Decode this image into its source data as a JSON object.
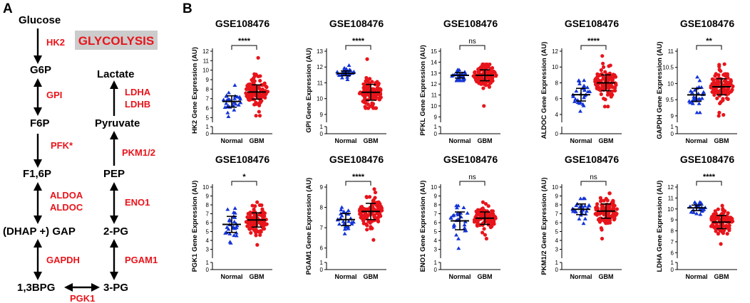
{
  "panel_a": {
    "label": "A",
    "banner": "GLYCOLYSIS",
    "colors": {
      "enzyme": "#e8141b",
      "banner_bg": "#cccccc"
    },
    "left_metabolites": [
      "Glucose",
      "G6P",
      "F6P",
      "F1,6P",
      "(DHAP +) GAP",
      "1,3BPG"
    ],
    "right_metabolites": [
      "Lactate",
      "Pyruvate",
      "PEP",
      "2-PG",
      "3-PG"
    ],
    "enzymes": {
      "hk2": "HK2",
      "gpi": "GPI",
      "pfk": "PFK*",
      "aldoa": "ALDOA",
      "aldoc": "ALDOC",
      "gapdh": "GAPDH",
      "pgk1": "PGK1",
      "pgam1": "PGAM1",
      "eno1": "ENO1",
      "pkm": "PKM1/2",
      "ldha": "LDHA",
      "ldhb": "LDHB"
    }
  },
  "panel_b_label": "B",
  "chart_data": [
    {
      "type": "scatter",
      "title": "GSE108476",
      "ylabel": "HK2 Gene Expression  (AU)",
      "categories": [
        "Normal",
        "GBM"
      ],
      "ylim": [
        0,
        12
      ],
      "yticks": [
        0,
        1,
        2,
        3,
        4,
        5,
        6,
        7,
        8,
        9,
        10,
        11,
        12
      ],
      "break": 4.5,
      "series": [
        {
          "name": "Normal",
          "color": "#1433d6",
          "marker": "triangle",
          "n": 28,
          "mean": 6.7,
          "sd": 0.6,
          "min": 5.1,
          "max": 8.4
        },
        {
          "name": "GBM",
          "color": "#e8141b",
          "marker": "circle",
          "n": 110,
          "mean": 7.7,
          "sd": 0.75,
          "min": 5.2,
          "max": 11.3
        }
      ],
      "significance": "****"
    },
    {
      "type": "scatter",
      "title": "GSE108476",
      "ylabel": "GPI Gene Expression  (AU)",
      "categories": [
        "Normal",
        "GBM"
      ],
      "ylim": [
        0,
        13
      ],
      "yticks": [
        0,
        1,
        9,
        10,
        11,
        12,
        13
      ],
      "break": 8.5,
      "ymin_upper": 8.5,
      "series": [
        {
          "name": "Normal",
          "color": "#1433d6",
          "marker": "triangle",
          "n": 28,
          "mean": 11.6,
          "sd": 0.15,
          "min": 11.2,
          "max": 12.1
        },
        {
          "name": "GBM",
          "color": "#e8141b",
          "marker": "circle",
          "n": 110,
          "mean": 10.4,
          "sd": 0.5,
          "min": 9.4,
          "max": 12.5
        }
      ],
      "significance": "****"
    },
    {
      "type": "scatter",
      "title": "GSE108476",
      "ylabel": "PFKL Gene Expression  (AU)",
      "categories": [
        "Normal",
        "GBM"
      ],
      "ylim": [
        0,
        15
      ],
      "yticks": [
        0,
        1,
        9,
        10,
        11,
        12,
        13,
        14,
        15
      ],
      "break": 8.5,
      "series": [
        {
          "name": "Normal",
          "color": "#1433d6",
          "marker": "triangle",
          "n": 28,
          "mean": 12.8,
          "sd": 0.25,
          "min": 12.3,
          "max": 13.3
        },
        {
          "name": "GBM",
          "color": "#e8141b",
          "marker": "circle",
          "n": 110,
          "mean": 12.8,
          "sd": 0.5,
          "min": 10.0,
          "max": 13.8
        }
      ],
      "significance": "ns"
    },
    {
      "type": "scatter",
      "title": "GSE108476",
      "ylabel": "ALDOC Gene Expression  (AU)",
      "categories": [
        "Normal",
        "GBM"
      ],
      "ylim": [
        0,
        12
      ],
      "yticks": [
        0,
        2,
        4,
        6,
        8,
        10,
        12
      ],
      "break": 3,
      "series": [
        {
          "name": "Normal",
          "color": "#1433d6",
          "marker": "triangle",
          "n": 28,
          "mean": 6.5,
          "sd": 0.8,
          "min": 4.4,
          "max": 8.3
        },
        {
          "name": "GBM",
          "color": "#e8141b",
          "marker": "circle",
          "n": 110,
          "mean": 8.0,
          "sd": 1.0,
          "min": 5.0,
          "max": 11.4
        }
      ],
      "significance": "****"
    },
    {
      "type": "scatter",
      "title": "GSE108476",
      "ylabel": "GAPDH Gene Expression  (AU)",
      "categories": [
        "Normal",
        "GBM"
      ],
      "ylim": [
        0,
        11
      ],
      "yticks": [
        0,
        1,
        9.0,
        9.5,
        10.0,
        10.5,
        11.0
      ],
      "break": 8.8,
      "series": [
        {
          "name": "Normal",
          "color": "#1433d6",
          "marker": "triangle",
          "n": 28,
          "mean": 9.65,
          "sd": 0.2,
          "min": 9.1,
          "max": 10.2
        },
        {
          "name": "GBM",
          "color": "#e8141b",
          "marker": "circle",
          "n": 110,
          "mean": 9.9,
          "sd": 0.25,
          "min": 9.0,
          "max": 10.6
        }
      ],
      "significance": "**"
    },
    {
      "type": "scatter",
      "title": "GSE108476",
      "ylabel": "PGK1 Gene Expression  (AU)",
      "categories": [
        "Normal",
        "GBM"
      ],
      "ylim": [
        0,
        10
      ],
      "yticks": [
        0,
        1,
        3,
        4,
        5,
        6,
        7,
        8,
        9,
        10
      ],
      "break": 2,
      "series": [
        {
          "name": "Normal",
          "color": "#1433d6",
          "marker": "triangle",
          "n": 28,
          "mean": 5.8,
          "sd": 0.9,
          "min": 3.7,
          "max": 7.6
        },
        {
          "name": "GBM",
          "color": "#e8141b",
          "marker": "circle",
          "n": 110,
          "mean": 6.3,
          "sd": 0.8,
          "min": 3.5,
          "max": 8.3
        }
      ],
      "significance": "*"
    },
    {
      "type": "scatter",
      "title": "GSE108476",
      "ylabel": "PGAM1 Gene Expression  (AU)",
      "categories": [
        "Normal",
        "GBM"
      ],
      "ylim": [
        0,
        9
      ],
      "yticks": [
        0,
        1,
        6,
        7,
        8,
        9
      ],
      "break": 5.5,
      "series": [
        {
          "name": "Normal",
          "color": "#1433d6",
          "marker": "triangle",
          "n": 28,
          "mean": 7.4,
          "sd": 0.3,
          "min": 6.7,
          "max": 8.0
        },
        {
          "name": "GBM",
          "color": "#e8141b",
          "marker": "circle",
          "n": 110,
          "mean": 7.8,
          "sd": 0.4,
          "min": 6.4,
          "max": 8.9
        }
      ],
      "significance": "****"
    },
    {
      "type": "scatter",
      "title": "GSE108476",
      "ylabel": "ENO1 Gene Expression  (AU)",
      "categories": [
        "Normal",
        "GBM"
      ],
      "ylim": [
        0,
        10
      ],
      "yticks": [
        0,
        1,
        3,
        4,
        5,
        6,
        7,
        8,
        9,
        10
      ],
      "break": 2,
      "series": [
        {
          "name": "Normal",
          "color": "#1433d6",
          "marker": "triangle",
          "n": 28,
          "mean": 6.2,
          "sd": 1.0,
          "min": 3.1,
          "max": 7.9
        },
        {
          "name": "GBM",
          "color": "#e8141b",
          "marker": "circle",
          "n": 110,
          "mean": 6.5,
          "sd": 0.7,
          "min": 4.2,
          "max": 8.3
        }
      ],
      "significance": "ns"
    },
    {
      "type": "scatter",
      "title": "GSE108476",
      "ylabel": "PKM1/2 Gene Expression  (AU)",
      "categories": [
        "Normal",
        "GBM"
      ],
      "ylim": [
        0,
        10
      ],
      "yticks": [
        0,
        1,
        3,
        4,
        5,
        6,
        7,
        8,
        9,
        10
      ],
      "break": 2,
      "series": [
        {
          "name": "Normal",
          "color": "#1433d6",
          "marker": "triangle",
          "n": 28,
          "mean": 7.5,
          "sd": 0.6,
          "min": 5.9,
          "max": 8.7
        },
        {
          "name": "GBM",
          "color": "#e8141b",
          "marker": "circle",
          "n": 110,
          "mean": 7.3,
          "sd": 0.8,
          "min": 4.2,
          "max": 9.3
        }
      ],
      "significance": "ns"
    },
    {
      "type": "scatter",
      "title": "GSE108476",
      "ylabel": "LDHA Gene Expression  (AU)",
      "categories": [
        "Normal",
        "GBM"
      ],
      "ylim": [
        0,
        12
      ],
      "yticks": [
        0,
        1,
        6,
        7,
        8,
        9,
        10,
        11,
        12
      ],
      "break": 5.5,
      "series": [
        {
          "name": "Normal",
          "color": "#1433d6",
          "marker": "triangle",
          "n": 28,
          "mean": 10.1,
          "sd": 0.25,
          "min": 9.5,
          "max": 10.6
        },
        {
          "name": "GBM",
          "color": "#e8141b",
          "marker": "circle",
          "n": 110,
          "mean": 8.8,
          "sd": 0.6,
          "min": 6.8,
          "max": 10.3
        }
      ],
      "significance": "****"
    }
  ]
}
